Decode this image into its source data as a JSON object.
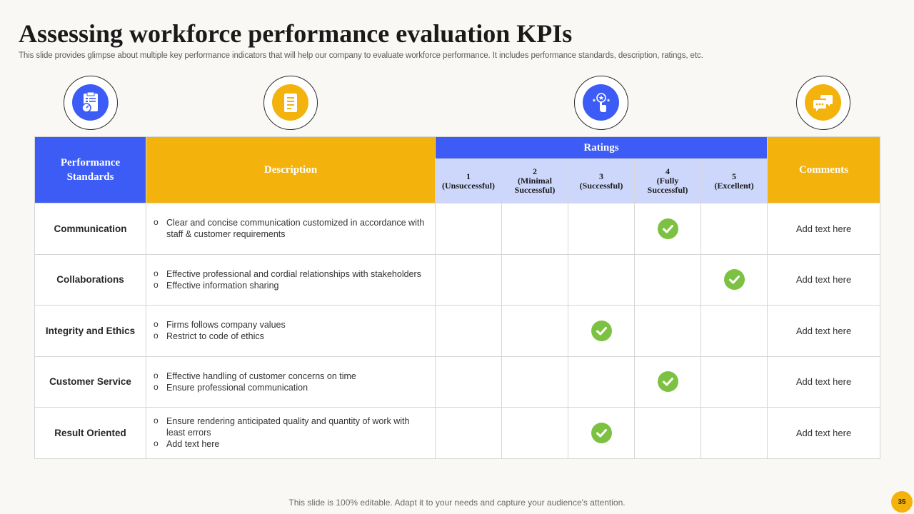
{
  "title": "Assessing workforce performance evaluation KPIs",
  "subtitle": "This slide provides glimpse about multiple key performance indicators that will help our company to evaluate workforce performance. It includes performance standards, description, ratings, etc.",
  "icons": [
    "clipboard-gauge-icon",
    "document-list-icon",
    "rating-hand-icon",
    "chat-bubbles-icon"
  ],
  "colors": {
    "blue": "#3d5cf5",
    "gold": "#f3b30c",
    "rating_bg": "#cdd7fb",
    "check": "#7dc142"
  },
  "table": {
    "headers": {
      "standards": "Performance Standards",
      "description": "Description",
      "ratings": "Ratings",
      "comments": "Comments"
    },
    "ratings": [
      {
        "num": "1",
        "label": "(Unsuccessful)"
      },
      {
        "num": "2",
        "label": "(Minimal Successful)"
      },
      {
        "num": "3",
        "label": "(Successful)"
      },
      {
        "num": "4",
        "label": "(Fully Successful)"
      },
      {
        "num": "5",
        "label": "(Excellent)"
      }
    ],
    "rows": [
      {
        "standard": "Communication",
        "bullets": [
          "Clear and concise communication customized in accordance with staff & customer requirements"
        ],
        "rating": 4,
        "comment": "Add text here"
      },
      {
        "standard": "Collaborations",
        "bullets": [
          "Effective professional and cordial relationships with stakeholders",
          "Effective information sharing"
        ],
        "rating": 5,
        "comment": "Add text here"
      },
      {
        "standard": "Integrity and Ethics",
        "bullets": [
          "Firms follows company values",
          "Restrict to code of ethics"
        ],
        "rating": 3,
        "comment": "Add text here"
      },
      {
        "standard": "Customer Service",
        "bullets": [
          "Effective handling of customer concerns on time",
          "Ensure professional communication"
        ],
        "rating": 4,
        "comment": "Add text here"
      },
      {
        "standard": "Result Oriented",
        "bullets": [
          "Ensure rendering anticipated quality and quantity of work with least errors",
          "Add text here"
        ],
        "rating": 3,
        "comment": "Add text here"
      }
    ]
  },
  "footer": "This slide is 100% editable. Adapt it to your needs and capture your audience's attention.",
  "page_number": "35"
}
